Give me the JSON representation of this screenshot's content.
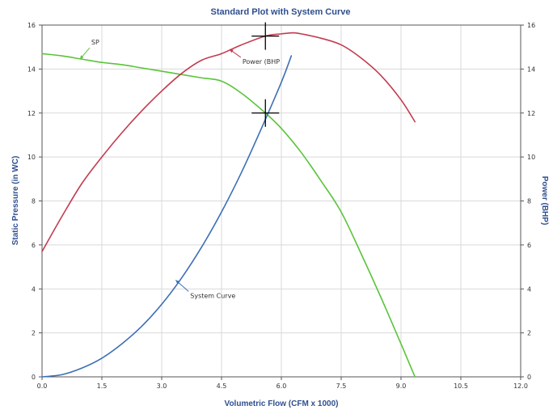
{
  "colors": {
    "sp": "#5ac43a",
    "power": "#c33b50",
    "system_curve": "#3d6fb5",
    "grid": "#d9d9d9",
    "axis": "#555555",
    "text_blue": "#2f4f8f"
  },
  "chart_data": {
    "type": "line",
    "title": "Standard Plot with System Curve",
    "xlabel": "Volumetric Flow (CFM x 1000)",
    "ylabel": "Static Pressure (in WC)",
    "y2label": "Power (BHP)",
    "xlim": [
      0,
      12
    ],
    "ylim": [
      0,
      16
    ],
    "y2lim": [
      0,
      16
    ],
    "grid": true,
    "xticks": [
      "0.0",
      "1.5",
      "3.0",
      "4.5",
      "6.0",
      "7.5",
      "9.0",
      "10.5",
      "12.0"
    ],
    "yticks": [
      "0",
      "2",
      "4",
      "6",
      "8",
      "10",
      "12",
      "14",
      "16"
    ],
    "y2ticks": [
      "0",
      "2",
      "4",
      "6",
      "8",
      "10",
      "12",
      "14",
      "16"
    ],
    "series": [
      {
        "name": "SP",
        "axis": "left",
        "color": "#5ac43a",
        "x": [
          0.0,
          0.5,
          1.0,
          1.5,
          2.0,
          2.5,
          3.0,
          3.5,
          4.0,
          4.5,
          5.0,
          5.6,
          6.0,
          6.5,
          7.0,
          7.5,
          8.0,
          8.5,
          9.0,
          9.35
        ],
        "y": [
          14.7,
          14.6,
          14.45,
          14.3,
          14.2,
          14.05,
          13.9,
          13.75,
          13.6,
          13.45,
          12.9,
          12.0,
          11.3,
          10.2,
          8.9,
          7.5,
          5.6,
          3.6,
          1.5,
          0.0
        ]
      },
      {
        "name": "Power (BHP",
        "axis": "right",
        "color": "#c33b50",
        "x": [
          0.0,
          0.5,
          1.0,
          1.5,
          2.0,
          2.5,
          3.0,
          3.5,
          4.0,
          4.5,
          5.0,
          5.6,
          6.0,
          6.3,
          6.5,
          7.0,
          7.5,
          8.0,
          8.5,
          9.0,
          9.35
        ],
        "y": [
          5.7,
          7.3,
          8.8,
          10.0,
          11.1,
          12.1,
          13.0,
          13.8,
          14.4,
          14.7,
          15.1,
          15.5,
          15.6,
          15.65,
          15.6,
          15.4,
          15.1,
          14.5,
          13.7,
          12.6,
          11.6
        ]
      },
      {
        "name": "System Curve",
        "axis": "left",
        "color": "#3d6fb5",
        "x": [
          0.0,
          0.5,
          1.0,
          1.5,
          2.0,
          2.5,
          3.0,
          3.5,
          4.0,
          4.5,
          5.0,
          5.5,
          6.0,
          6.25
        ],
        "y": [
          0.0,
          0.1,
          0.4,
          0.85,
          1.5,
          2.3,
          3.3,
          4.5,
          5.9,
          7.5,
          9.3,
          11.3,
          13.4,
          14.6
        ]
      }
    ],
    "markers": [
      {
        "x": 5.6,
        "y": 15.5,
        "axis": "right"
      },
      {
        "x": 5.6,
        "y": 12.0,
        "axis": "left"
      }
    ],
    "annotations": [
      {
        "text": "SP",
        "series": "SP",
        "at_x": 0.95,
        "at_y": 14.45
      },
      {
        "text": "Power (BHP",
        "series": "Power (BHP",
        "at_x": 4.7,
        "at_y": 14.9
      },
      {
        "text": "System Curve",
        "series": "System Curve",
        "at_x": 3.35,
        "at_y": 4.4
      }
    ]
  }
}
